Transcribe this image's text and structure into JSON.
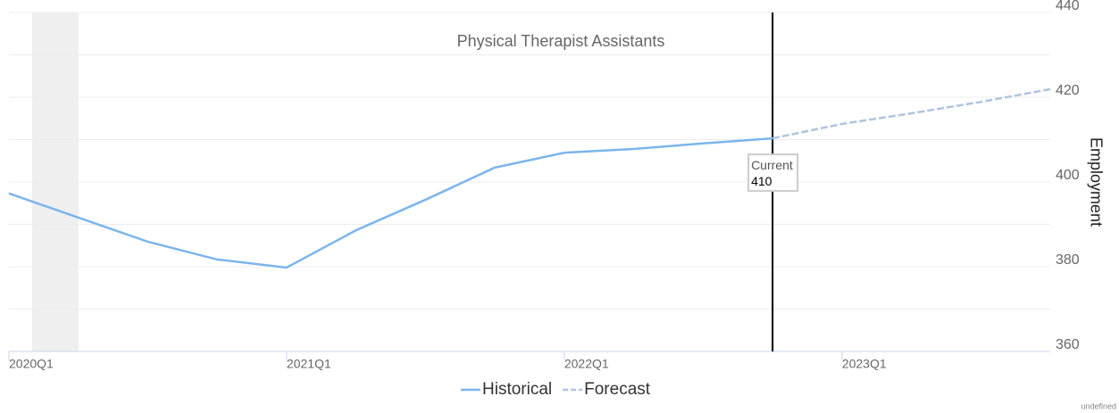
{
  "chart_data": {
    "type": "line",
    "title": "Physical Therapist Assistants",
    "y_label": "Employment",
    "footer": "undefined",
    "categories": [
      "2020Q1",
      null,
      null,
      null,
      "2021Q1",
      null,
      null,
      null,
      "2022Q1",
      null,
      null,
      null,
      "2023Q1",
      null,
      null,
      null
    ],
    "series": [
      {
        "name": "Historical",
        "color": "#7cb5ec",
        "dashed": false,
        "values": [
          397.3,
          391.6,
          385.9,
          381.7,
          379.8,
          388.6,
          395.8,
          403.4,
          406.9,
          407.8,
          409.1,
          410.3,
          null,
          null,
          null,
          null
        ]
      },
      {
        "name": "Forecast",
        "color": "#b0c4de",
        "dashed": true,
        "values": [
          null,
          null,
          null,
          null,
          null,
          null,
          null,
          null,
          null,
          null,
          null,
          410.3,
          413.7,
          416.2,
          418.9,
          421.9
        ]
      }
    ],
    "annotation": {
      "label": "Current",
      "value": 410
    },
    "ylim": [
      360,
      440
    ],
    "yticks": [
      360,
      380,
      400,
      420,
      440
    ],
    "grid_yticks": [
      360,
      370,
      380,
      390,
      400,
      410,
      420,
      430,
      440
    ],
    "grid": true,
    "y_axis_side": "right",
    "legend": "bottom"
  }
}
